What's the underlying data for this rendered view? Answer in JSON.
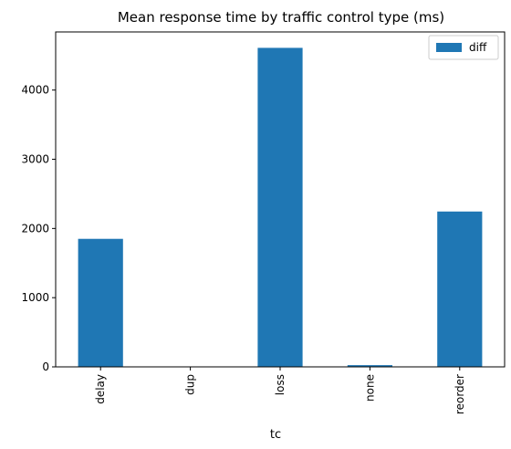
{
  "chart_data": {
    "type": "bar",
    "title": "Mean response time by traffic control type (ms)",
    "xlabel": "tc",
    "ylabel": "",
    "categories": [
      "delay",
      "dup",
      "loss",
      "none",
      "reorder"
    ],
    "series": [
      {
        "name": "diff",
        "values": [
          1850,
          2,
          4610,
          25,
          2245
        ],
        "color": "#1f77b4"
      }
    ],
    "ylim": [
      0,
      4840
    ],
    "yticks": [
      0,
      1000,
      2000,
      3000,
      4000
    ],
    "grid": false,
    "legend_position": "top-right"
  }
}
